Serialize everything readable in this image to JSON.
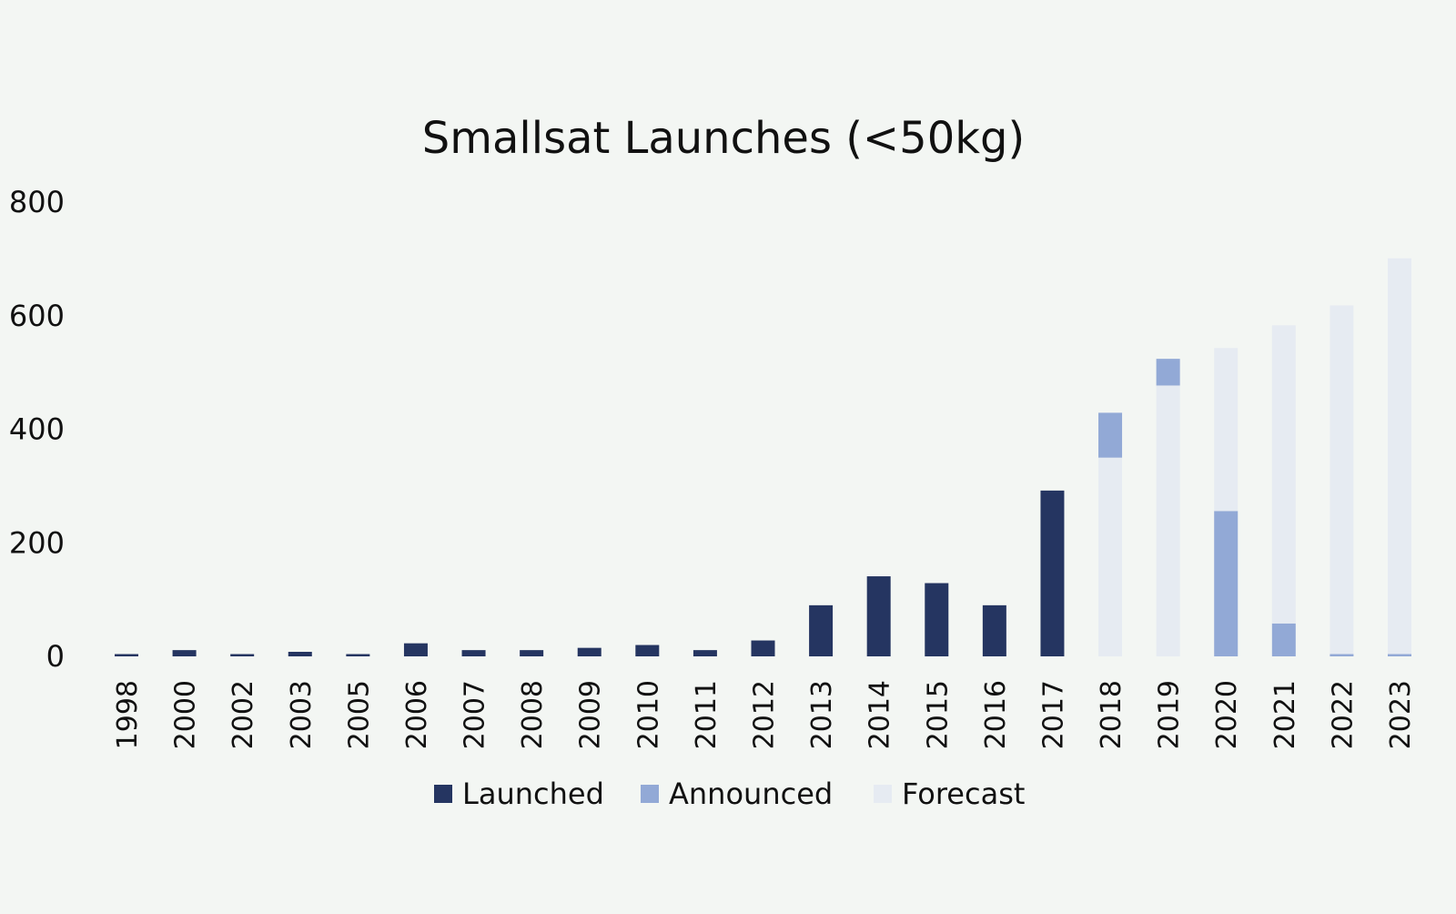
{
  "chart_data": {
    "type": "bar",
    "stacked": true,
    "title": "Smallsat Launches (<50kg)",
    "xlabel": "",
    "ylabel": "",
    "ylim": [
      0,
      800
    ],
    "yticks": [
      0,
      200,
      400,
      600,
      800
    ],
    "grid": false,
    "legend_position": "bottom",
    "categories": [
      "1998",
      "2000",
      "2002",
      "2003",
      "2005",
      "2006",
      "2007",
      "2008",
      "2009",
      "2010",
      "2011",
      "2012",
      "2013",
      "2014",
      "2015",
      "2016",
      "2017",
      "2018",
      "2019",
      "2020",
      "2021",
      "2022",
      "2023"
    ],
    "series": [
      {
        "name": "Launched",
        "color": "#253561",
        "values": [
          4,
          11,
          4,
          8,
          4,
          23,
          11,
          11,
          15,
          20,
          11,
          28,
          90,
          141,
          129,
          90,
          292,
          0,
          0,
          0,
          0,
          0,
          0
        ]
      },
      {
        "name": "Announced",
        "color": "#92a9d6",
        "values": [
          0,
          0,
          0,
          0,
          0,
          0,
          0,
          0,
          0,
          0,
          0,
          0,
          0,
          0,
          0,
          0,
          0,
          79,
          47,
          256,
          58,
          4,
          4
        ]
      },
      {
        "name": "Forecast",
        "color": "#e6ebf2",
        "values": [
          0,
          0,
          0,
          0,
          0,
          0,
          0,
          0,
          0,
          0,
          0,
          0,
          0,
          0,
          0,
          0,
          0,
          350,
          477,
          287,
          525,
          614,
          697
        ]
      }
    ],
    "stack_order_note_years_forecast_below_announced": [
      "2018",
      "2019"
    ]
  }
}
